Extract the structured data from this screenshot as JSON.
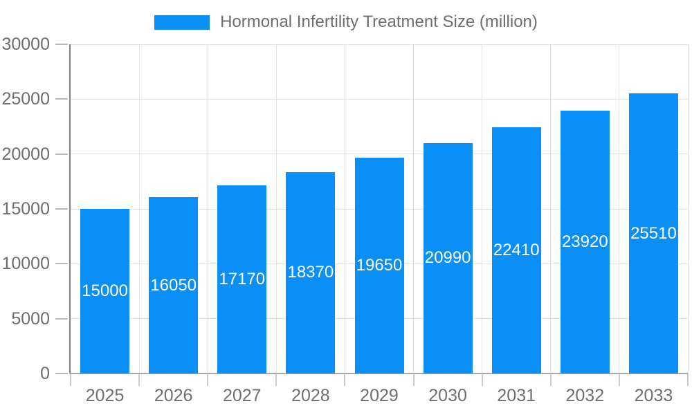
{
  "chart_data": {
    "type": "bar",
    "title": "",
    "legend": {
      "position": "top",
      "label": "Hormonal Infertility Treatment Size (million)"
    },
    "categories": [
      "2025",
      "2026",
      "2027",
      "2028",
      "2029",
      "2030",
      "2031",
      "2032",
      "2033"
    ],
    "values": [
      15000,
      16050,
      17170,
      18370,
      19650,
      20990,
      22410,
      23920,
      25510
    ],
    "value_labels": [
      "15000",
      "16050",
      "17170",
      "18370",
      "19650",
      "20990",
      "22410",
      "23920",
      "25510"
    ],
    "ytick_labels": [
      "0",
      "5000",
      "10000",
      "15000",
      "20000",
      "25000",
      "30000"
    ],
    "yticks": [
      0,
      5000,
      10000,
      15000,
      20000,
      25000,
      30000
    ],
    "ylim": [
      0,
      30000
    ],
    "xlabel": "",
    "ylabel": "",
    "grid": true,
    "colors": {
      "bar": "#0a8ff9",
      "value_label": "#ffffff",
      "axis_text": "#6e6e6e",
      "legend_text": "#6e6e6e",
      "grid_line": "#e2e2e2",
      "y_axis_line": "#7d7d7d",
      "x_axis_line": "#a8a8a8",
      "y_tick": "#b8b8b8",
      "x_tick": "#cccccc",
      "background": "#ffffff"
    }
  }
}
